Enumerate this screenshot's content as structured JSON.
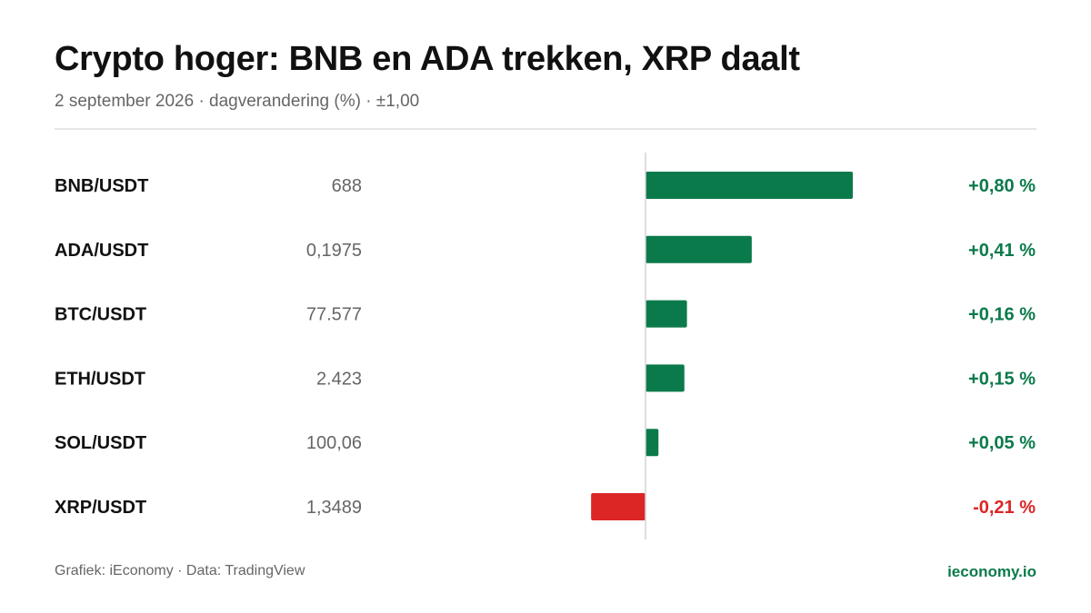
{
  "title": "Crypto hoger: BNB en ADA trekken, XRP daalt",
  "subtitle": "2 september 2026 · dagverandering (%) · ±1,00",
  "footer": {
    "credit": "Grafiek: iEconomy · Data: TradingView",
    "brand": "ieconomy.io"
  },
  "colors": {
    "positive": "#0b7a4b",
    "negative": "#dc2626",
    "zero_line": "#d4d4d4"
  },
  "chart_data": {
    "type": "bar",
    "orientation": "horizontal",
    "xlim": [
      -1.0,
      1.0
    ],
    "categories": [
      "BNB/USDT",
      "ADA/USDT",
      "BTC/USDT",
      "ETH/USDT",
      "SOL/USDT",
      "XRP/USDT"
    ],
    "prices": [
      "688",
      "0,1975",
      "77.577",
      "2.423",
      "100,06",
      "1,3489"
    ],
    "values": [
      0.8,
      0.41,
      0.16,
      0.15,
      0.05,
      -0.21
    ],
    "value_labels": [
      "+0,80 %",
      "+0,41 %",
      "+0,16 %",
      "+0,15 %",
      "+0,05 %",
      "-0,21 %"
    ]
  }
}
